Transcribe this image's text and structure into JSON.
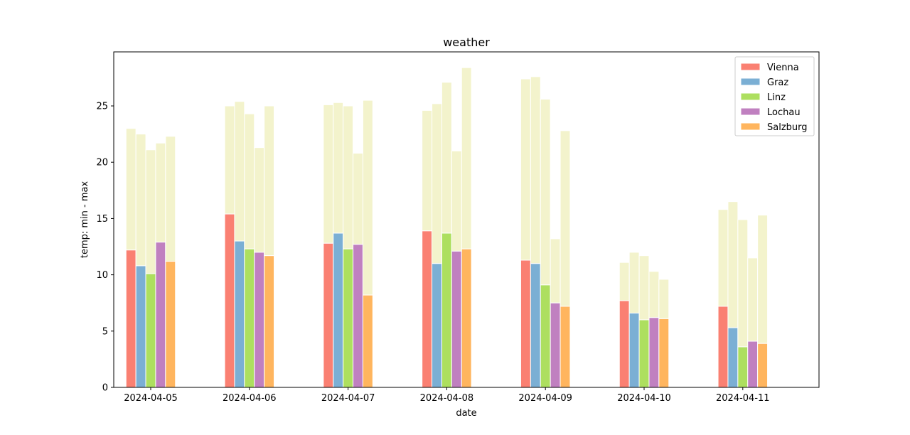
{
  "chart_data": {
    "type": "bar",
    "title": "weather",
    "xlabel": "date",
    "ylabel": "temp: min - max",
    "categories": [
      "2024-04-05",
      "2024-04-06",
      "2024-04-07",
      "2024-04-08",
      "2024-04-09",
      "2024-04-10",
      "2024-04-11"
    ],
    "ylim": [
      0,
      29.8
    ],
    "yticks": [
      0,
      5,
      10,
      15,
      20,
      25
    ],
    "legend_position": "top-right",
    "range_color": "#f3f3cc",
    "series": [
      {
        "name": "Vienna",
        "color": "#fa8072",
        "min": [
          12.2,
          15.4,
          12.8,
          13.9,
          11.3,
          7.7,
          7.2
        ],
        "max": [
          23.0,
          25.0,
          25.1,
          24.6,
          27.4,
          11.1,
          15.8
        ]
      },
      {
        "name": "Graz",
        "color": "#7bafd4",
        "min": [
          10.8,
          13.0,
          13.7,
          11.0,
          11.0,
          6.6,
          5.3
        ],
        "max": [
          22.5,
          25.4,
          25.3,
          25.2,
          27.6,
          12.0,
          16.5
        ]
      },
      {
        "name": "Linz",
        "color": "#addf5f",
        "min": [
          10.1,
          12.3,
          12.3,
          13.7,
          9.1,
          6.0,
          3.6
        ],
        "max": [
          21.1,
          24.3,
          25.0,
          27.1,
          25.6,
          11.7,
          14.9
        ]
      },
      {
        "name": "Lochau",
        "color": "#c080c0",
        "min": [
          12.9,
          12.0,
          12.7,
          12.1,
          7.5,
          6.2,
          4.1
        ],
        "max": [
          21.7,
          21.3,
          20.8,
          21.0,
          13.2,
          10.3,
          11.5
        ]
      },
      {
        "name": "Salzburg",
        "color": "#ffb55e",
        "min": [
          11.2,
          11.7,
          8.2,
          12.3,
          7.2,
          6.1,
          3.9
        ],
        "max": [
          22.3,
          25.0,
          25.5,
          28.4,
          22.8,
          9.6,
          15.3
        ]
      }
    ]
  }
}
